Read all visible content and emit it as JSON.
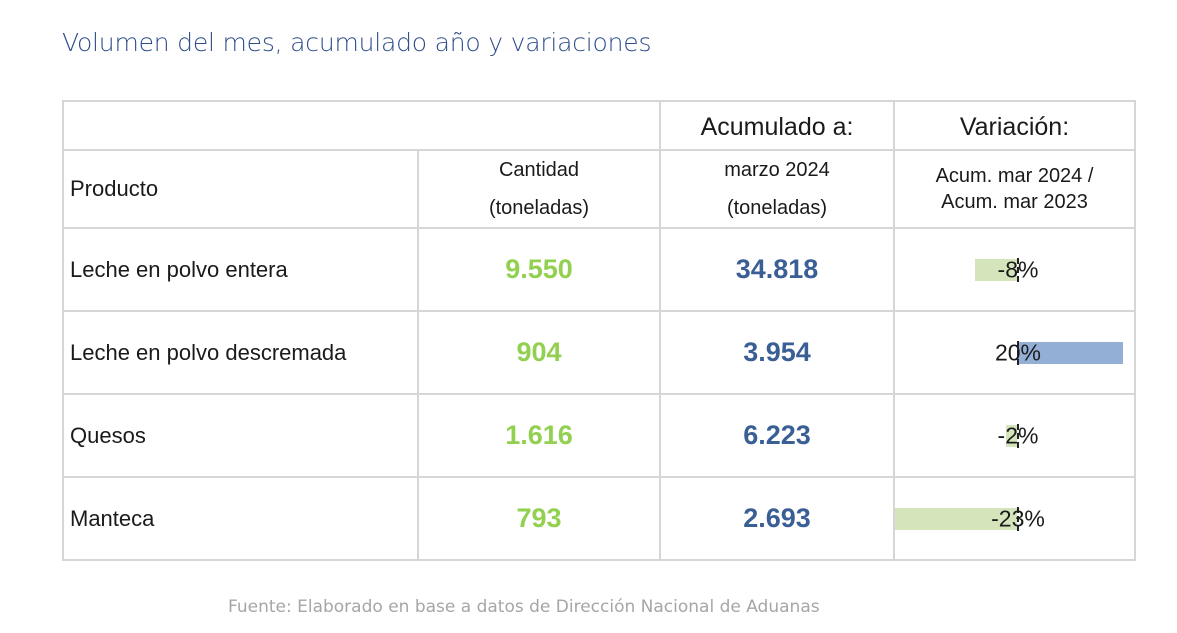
{
  "title": "Volumen del mes, acumulado año y variaciones",
  "header": {
    "accum_top": "Acumulado a:",
    "var_top": "Variación:",
    "product": "Producto",
    "qty_line1": "Cantidad",
    "qty_line2": "(toneladas)",
    "accum_line1": "marzo 2024",
    "accum_line2": "(toneladas)",
    "var_line1": "Acum. mar 2024 /",
    "var_line2": "Acum. mar 2023"
  },
  "rows": [
    {
      "product": "Leche en polvo entera",
      "quantity": "9.550",
      "accumulated": "34.818",
      "variation": "-8%",
      "variation_pct": -8
    },
    {
      "product": "Leche en polvo descremada",
      "quantity": "904",
      "accumulated": "3.954",
      "variation": "20%",
      "variation_pct": 20
    },
    {
      "product": "Quesos",
      "quantity": "1.616",
      "accumulated": "6.223",
      "variation": "-2%",
      "variation_pct": -2
    },
    {
      "product": "Manteca",
      "quantity": "793",
      "accumulated": "2.693",
      "variation": "-23%",
      "variation_pct": -23
    }
  ],
  "colors": {
    "title": "#2e4e8a",
    "quantity": "#92d050",
    "accumulated": "#3a5f95",
    "bar_negative": "#d4e5bc",
    "bar_positive": "#93afd6"
  },
  "source": "Fuente: Elaborado en base a datos de Dirección Nacional de Aduanas"
}
